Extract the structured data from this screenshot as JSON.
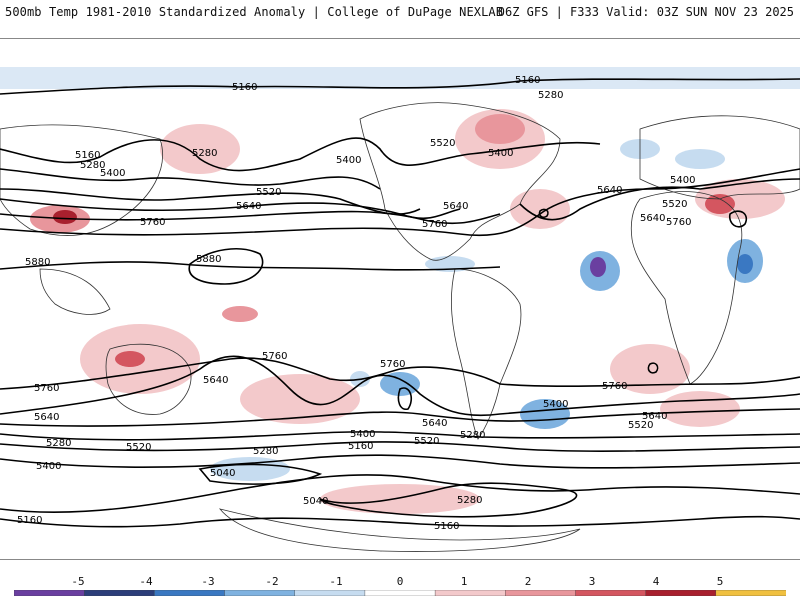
{
  "header": {
    "left_title": "500mb Temp 1981-2010 Standardized Anomaly | College of DuPage NEXLAB",
    "right_title": "06Z GFS | F333 Valid: 03Z SUN NOV 23 2025"
  },
  "colorbar": {
    "ticks": [
      "-5",
      "-4",
      "-3",
      "-2",
      "-1",
      "0",
      "1",
      "2",
      "3",
      "4",
      "5"
    ],
    "colors": [
      "#6a3fa0",
      "#2c3e7a",
      "#3a78c2",
      "#7fb2e0",
      "#c6dcf0",
      "#ffffff",
      "#f3c9cb",
      "#e8969c",
      "#d45660",
      "#a8202e",
      "#f0c040"
    ]
  },
  "map": {
    "contour_labels": [
      "5160",
      "5160",
      "5280",
      "5280",
      "5400",
      "5400",
      "5400",
      "5520",
      "5520",
      "5640",
      "5640",
      "5640",
      "5760",
      "5760",
      "5880",
      "5880",
      "5160",
      "5280",
      "5400",
      "5520",
      "5640",
      "5760",
      "5760",
      "5640",
      "5760",
      "5640",
      "5760",
      "5640",
      "5520",
      "5280",
      "5400",
      "5160",
      "5040",
      "5040",
      "5160",
      "5280",
      "5400",
      "5520",
      "5280",
      "5400",
      "5520",
      "5640",
      "5760",
      "5280",
      "5160"
    ]
  }
}
